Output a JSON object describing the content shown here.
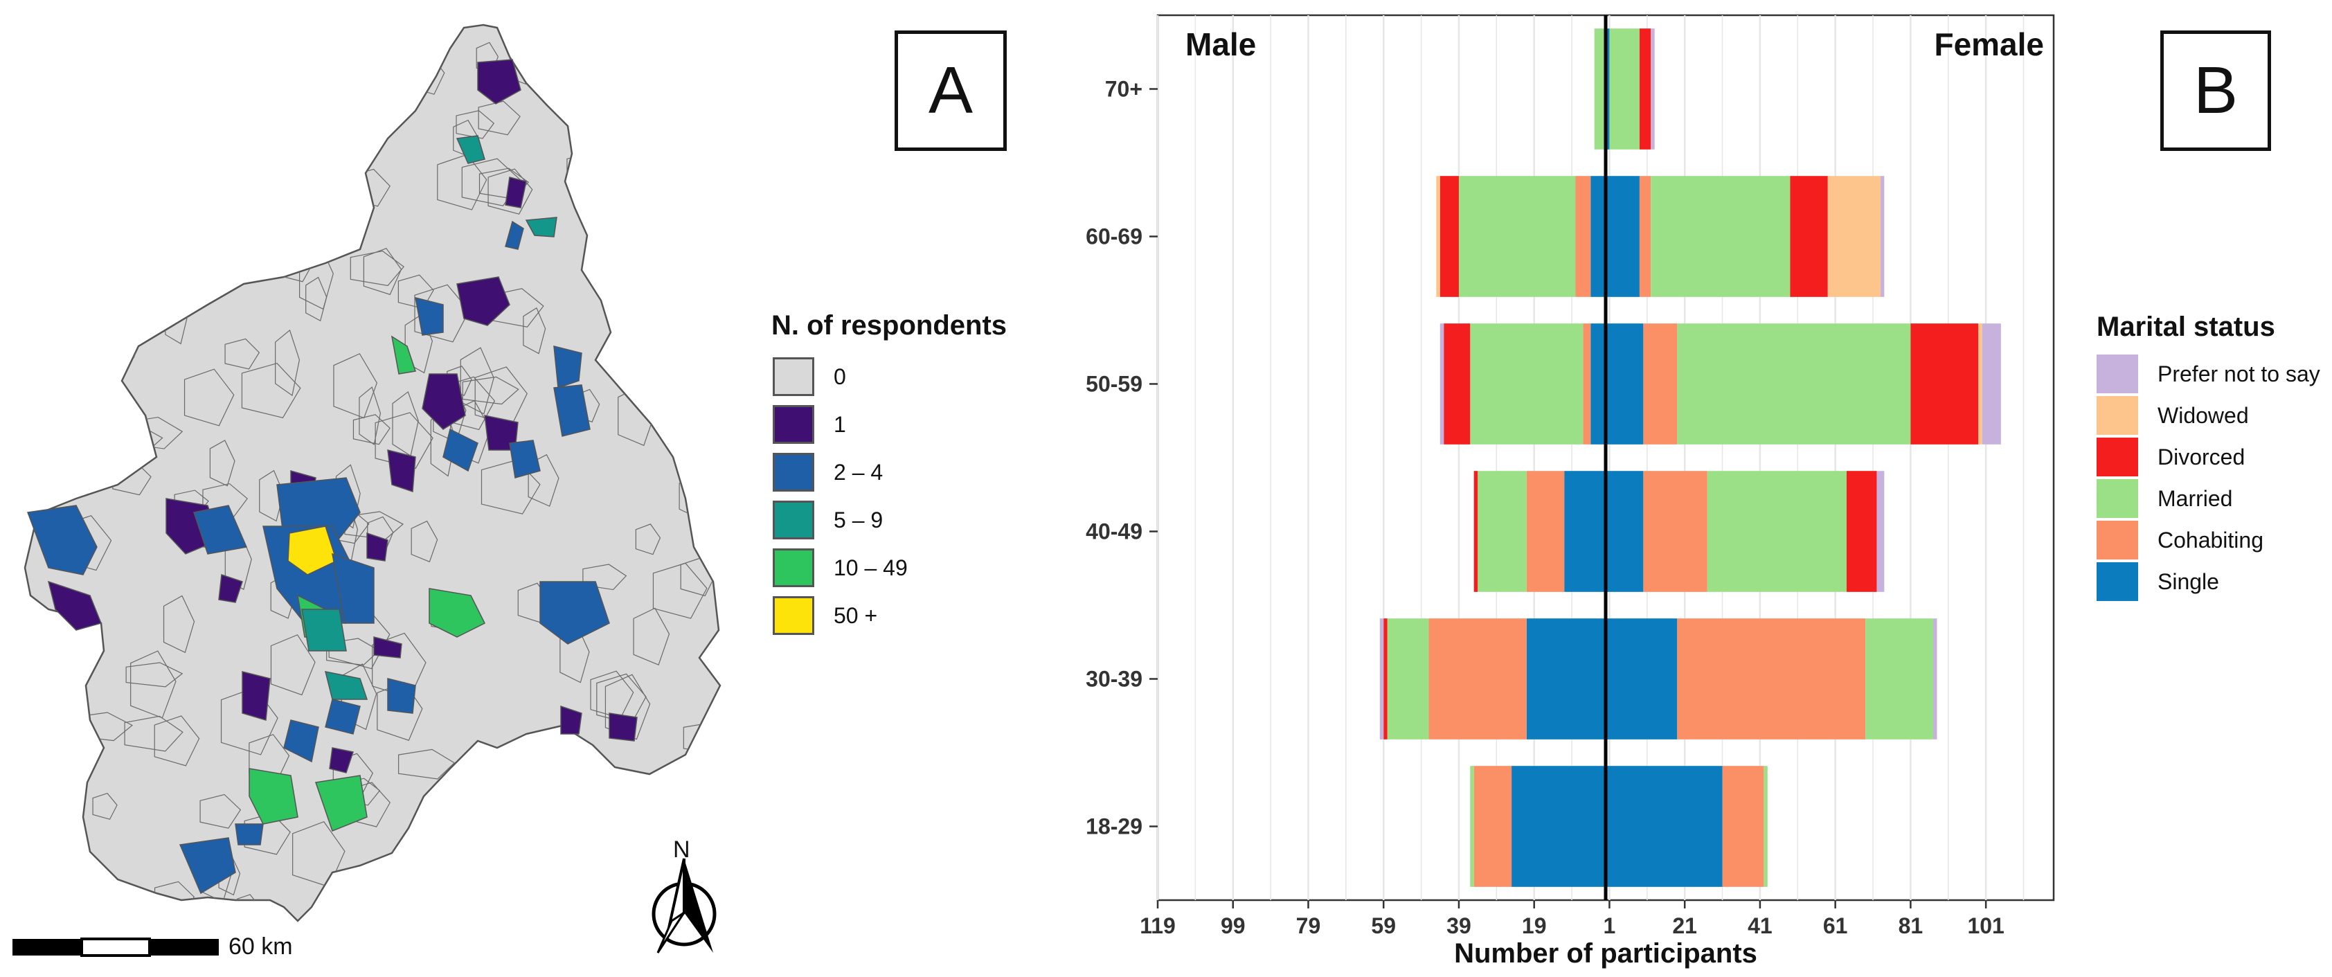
{
  "panel_a": {
    "label": "A",
    "legend": {
      "title": "N. of respondents",
      "items": [
        {
          "label": "0",
          "color": "#d9d9d9"
        },
        {
          "label": "1",
          "color": "#3f0f72"
        },
        {
          "label": "2 – 4",
          "color": "#1f5fa8"
        },
        {
          "label": "5 – 9",
          "color": "#12978a"
        },
        {
          "label": "10 – 49",
          "color": "#2ec55f"
        },
        {
          "label": "50 +",
          "color": "#fde30a"
        }
      ]
    },
    "scale_label": "60 km",
    "north_label": "N"
  },
  "panel_b": {
    "label": "B",
    "legend": {
      "title": "Marital status",
      "items": [
        {
          "label": "Prefer not to say",
          "color": "#c6b2dc"
        },
        {
          "label": "Widowed",
          "color": "#fdc58c"
        },
        {
          "label": "Divorced",
          "color": "#f51e1e"
        },
        {
          "label": "Married",
          "color": "#9be087"
        },
        {
          "label": "Cohabiting",
          "color": "#fb9066"
        },
        {
          "label": "Single",
          "color": "#0b7dbf"
        }
      ]
    }
  },
  "chart_data": {
    "type": "bar",
    "orientation": "horizontal-diverging",
    "title": "",
    "side_labels": {
      "left": "Male",
      "right": "Female"
    },
    "xlabel": "Number of participants",
    "ylabel": "",
    "xlim": [
      -119,
      119
    ],
    "xticks": [
      -119,
      -99,
      -79,
      -59,
      -39,
      -19,
      1,
      21,
      41,
      61,
      81,
      101
    ],
    "xtick_labels": [
      "119",
      "99",
      "79",
      "59",
      "39",
      "19",
      "1",
      "21",
      "41",
      "61",
      "81",
      "101"
    ],
    "categories": [
      "18-29",
      "30-39",
      "40-49",
      "50-59",
      "60-69",
      "70+"
    ],
    "stack_order": [
      "Single",
      "Cohabiting",
      "Married",
      "Divorced",
      "Widowed",
      "Prefer not to say"
    ],
    "colors": {
      "Single": "#0b7dbf",
      "Cohabiting": "#fb9066",
      "Married": "#9be087",
      "Divorced": "#f51e1e",
      "Widowed": "#fdc58c",
      "Prefer not to say": "#c6b2dc"
    },
    "male": [
      {
        "Single": 25,
        "Cohabiting": 10,
        "Married": 1,
        "Divorced": 0,
        "Widowed": 0,
        "Prefer not to say": 0
      },
      {
        "Single": 21,
        "Cohabiting": 26,
        "Married": 11,
        "Divorced": 1,
        "Widowed": 0,
        "Prefer not to say": 1
      },
      {
        "Single": 11,
        "Cohabiting": 10,
        "Married": 13,
        "Divorced": 1,
        "Widowed": 0,
        "Prefer not to say": 0
      },
      {
        "Single": 4,
        "Cohabiting": 2,
        "Married": 30,
        "Divorced": 7,
        "Widowed": 0,
        "Prefer not to say": 1
      },
      {
        "Single": 4,
        "Cohabiting": 4,
        "Married": 31,
        "Divorced": 5,
        "Widowed": 1,
        "Prefer not to say": 0
      },
      {
        "Single": 0,
        "Cohabiting": 0,
        "Married": 3,
        "Divorced": 0,
        "Widowed": 0,
        "Prefer not to say": 0
      }
    ],
    "female": [
      {
        "Single": 31,
        "Cohabiting": 11,
        "Married": 1,
        "Divorced": 0,
        "Widowed": 0,
        "Prefer not to say": 0
      },
      {
        "Single": 19,
        "Cohabiting": 50,
        "Married": 18,
        "Divorced": 0,
        "Widowed": 0,
        "Prefer not to say": 1
      },
      {
        "Single": 10,
        "Cohabiting": 17,
        "Married": 37,
        "Divorced": 8,
        "Widowed": 0,
        "Prefer not to say": 2
      },
      {
        "Single": 10,
        "Cohabiting": 9,
        "Married": 62,
        "Divorced": 18,
        "Widowed": 1,
        "Prefer not to say": 5
      },
      {
        "Single": 9,
        "Cohabiting": 3,
        "Married": 37,
        "Divorced": 10,
        "Widowed": 14,
        "Prefer not to say": 1
      },
      {
        "Single": 1,
        "Cohabiting": 0,
        "Married": 8,
        "Divorced": 3,
        "Widowed": 0,
        "Prefer not to say": 1
      }
    ]
  }
}
